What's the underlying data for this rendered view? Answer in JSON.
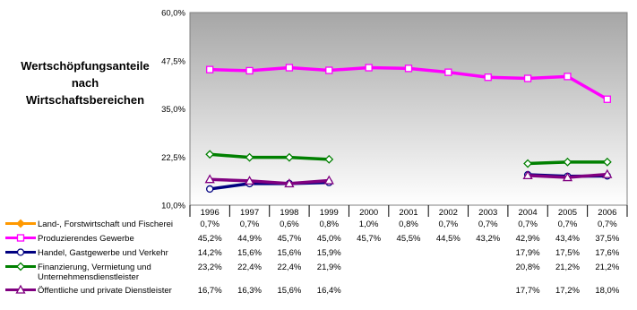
{
  "chart_data": {
    "type": "line",
    "title_lines": [
      "Wertschöpfungsanteile",
      "nach",
      "Wirtschaftsbereichen"
    ],
    "categories": [
      "1996",
      "1997",
      "1998",
      "1999",
      "2000",
      "2001",
      "2002",
      "2003",
      "2004",
      "2005",
      "2006"
    ],
    "y_ticks": [
      "10,0%",
      "22,5%",
      "35,0%",
      "47,5%",
      "60,0%"
    ],
    "ylim": [
      10,
      60
    ],
    "grid": false,
    "series": [
      {
        "name": "Land-, Forstwirtschaft und Fischerei",
        "name_lines": [
          "Land-, Forstwirtschaft und Fischerei"
        ],
        "color": "#ff9900",
        "marker": "diamond",
        "values": [
          0.7,
          0.7,
          0.6,
          0.8,
          1.0,
          0.8,
          0.7,
          0.7,
          0.7,
          0.7,
          0.7
        ],
        "labels": [
          "0,7%",
          "0,7%",
          "0,6%",
          "0,8%",
          "1,0%",
          "0,8%",
          "0,7%",
          "0,7%",
          "0,7%",
          "0,7%",
          "0,7%"
        ]
      },
      {
        "name": "Produzierendes Gewerbe",
        "name_lines": [
          "Produzierendes Gewerbe"
        ],
        "color": "#ff00ff",
        "marker": "square",
        "values": [
          45.2,
          44.9,
          45.7,
          45.0,
          45.7,
          45.5,
          44.5,
          43.2,
          42.9,
          43.4,
          37.5
        ],
        "labels": [
          "45,2%",
          "44,9%",
          "45,7%",
          "45,0%",
          "45,7%",
          "45,5%",
          "44,5%",
          "43,2%",
          "42,9%",
          "43,4%",
          "37,5%"
        ]
      },
      {
        "name": "Handel, Gastgewerbe und Verkehr",
        "name_lines": [
          "Handel, Gastgewerbe und Verkehr"
        ],
        "color": "#000080",
        "marker": "circle",
        "values": [
          14.2,
          15.6,
          15.6,
          15.9,
          null,
          null,
          null,
          null,
          17.9,
          17.5,
          17.6
        ],
        "labels": [
          "14,2%",
          "15,6%",
          "15,6%",
          "15,9%",
          "",
          "",
          "",
          "",
          "17,9%",
          "17,5%",
          "17,6%"
        ]
      },
      {
        "name": "Finanzierung, Vermietung und Unternehmensdienstleister",
        "name_lines": [
          "Finanzierung, Vermietung und",
          "Unternehmensdienstleister"
        ],
        "color": "#008000",
        "marker": "diamond",
        "values": [
          23.2,
          22.4,
          22.4,
          21.9,
          null,
          null,
          null,
          null,
          20.8,
          21.2,
          21.2
        ],
        "labels": [
          "23,2%",
          "22,4%",
          "22,4%",
          "21,9%",
          "",
          "",
          "",
          "",
          "20,8%",
          "21,2%",
          "21,2%"
        ]
      },
      {
        "name": "Öffentliche und private Dienstleister",
        "name_lines": [
          "Öffentliche und private Dienstleister"
        ],
        "color": "#800080",
        "marker": "triangle",
        "values": [
          16.7,
          16.3,
          15.6,
          16.4,
          null,
          null,
          null,
          null,
          17.7,
          17.2,
          18.0
        ],
        "labels": [
          "16,7%",
          "16,3%",
          "15,6%",
          "16,4%",
          "",
          "",
          "",
          "",
          "17,7%",
          "17,2%",
          "18,0%"
        ]
      }
    ]
  }
}
